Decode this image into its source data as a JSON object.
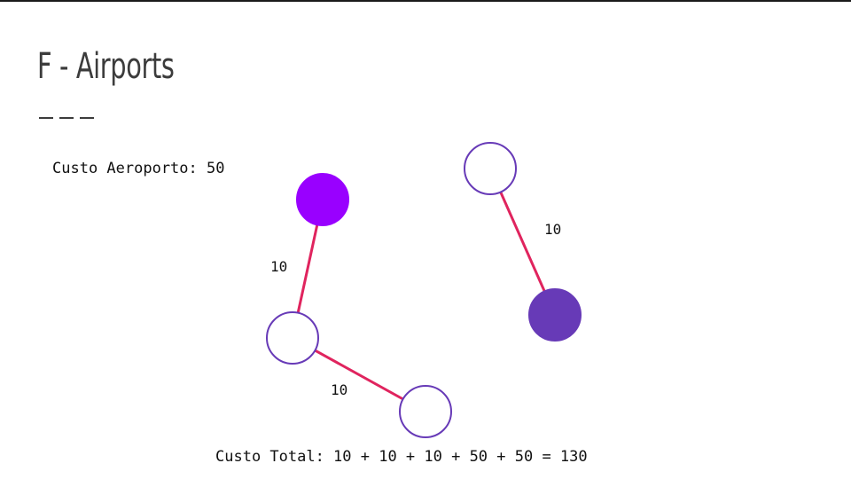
{
  "slide": {
    "title": "F - Airports",
    "airport_cost": "Custo Aeroporto: 50",
    "total_cost": "Custo Total: 10 + 10 + 10 + 50 + 50 = 130"
  },
  "graph": {
    "nodes": [
      {
        "id": "a",
        "fill": "#9900ff",
        "stroke": "#9900ff",
        "airport": true
      },
      {
        "id": "b",
        "fill": "#ffffff",
        "stroke": "#673ab7",
        "airport": false
      },
      {
        "id": "c",
        "fill": "#ffffff",
        "stroke": "#673ab7",
        "airport": false
      },
      {
        "id": "d",
        "fill": "#ffffff",
        "stroke": "#673ab7",
        "airport": false
      },
      {
        "id": "e",
        "fill": "#673ab7",
        "stroke": "#673ab7",
        "airport": true
      }
    ],
    "edges": [
      {
        "from": "a",
        "to": "b",
        "label": "10"
      },
      {
        "from": "b",
        "to": "c",
        "label": "10"
      },
      {
        "from": "d",
        "to": "e",
        "label": "10"
      }
    ],
    "edge_color": "#e0245e"
  }
}
